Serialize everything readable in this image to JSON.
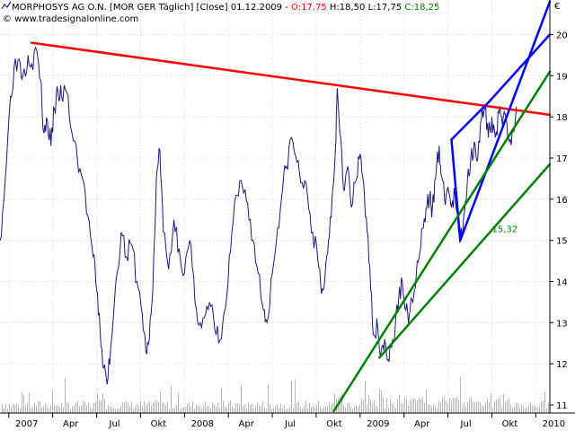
{
  "header": {
    "symbol": "MORPHOSYS AG O.N. [MOR GER",
    "interval": "Täglich] [Close] 01.12.2009 -",
    "open": "O:17,75",
    "high": "H:18,50",
    "low": "L:17,75",
    "close": "C:18,25",
    "copyright": "© www.tradesignalonline.com",
    "currency": "€"
  },
  "colors": {
    "price": "#1a1a80",
    "resistance": "#ff0000",
    "channel": "#0000ff",
    "support": "#008000",
    "volume": "#b8b8b8",
    "open": "#ff0000",
    "close": "#008000"
  },
  "chart_data": {
    "type": "line",
    "title": "MORPHOSYS AG O.N. [MOR GER Täglich] [Close] 01.12.2009",
    "x_tick_labels": [
      "2007",
      "Apr",
      "Jul",
      "Okt",
      "2008",
      "Apr",
      "Jul",
      "Okt",
      "2009",
      "Apr",
      "Jul",
      "Okt",
      "2010"
    ],
    "y_ticks": [
      11,
      12,
      13,
      14,
      15,
      16,
      17,
      18,
      19,
      20
    ],
    "ylim": [
      11,
      20.6
    ],
    "y_axis_position": "right",
    "grid": true,
    "series": [
      {
        "name": "Close",
        "anchors": [
          [
            2006.95,
            15.0
          ],
          [
            2006.98,
            16.5
          ],
          [
            2007.01,
            18.5
          ],
          [
            2007.03,
            19.2
          ],
          [
            2007.06,
            19.4
          ],
          [
            2007.08,
            19.0
          ],
          [
            2007.11,
            19.5
          ],
          [
            2007.13,
            19.3
          ],
          [
            2007.16,
            19.6
          ],
          [
            2007.18,
            18.9
          ],
          [
            2007.2,
            17.6
          ],
          [
            2007.22,
            17.9
          ],
          [
            2007.24,
            17.3
          ],
          [
            2007.26,
            18.2
          ],
          [
            2007.28,
            18.6
          ],
          [
            2007.3,
            18.5
          ],
          [
            2007.33,
            18.6
          ],
          [
            2007.36,
            17.6
          ],
          [
            2007.39,
            17.0
          ],
          [
            2007.42,
            16.5
          ],
          [
            2007.45,
            15.6
          ],
          [
            2007.48,
            14.6
          ],
          [
            2007.5,
            13.8
          ],
          [
            2007.52,
            12.8
          ],
          [
            2007.54,
            11.9
          ],
          [
            2007.56,
            11.5
          ],
          [
            2007.58,
            12.4
          ],
          [
            2007.61,
            14.0
          ],
          [
            2007.64,
            15.2
          ],
          [
            2007.67,
            14.6
          ],
          [
            2007.7,
            14.9
          ],
          [
            2007.73,
            14.0
          ],
          [
            2007.76,
            13.2
          ],
          [
            2007.78,
            12.3
          ],
          [
            2007.8,
            12.6
          ],
          [
            2007.82,
            13.8
          ],
          [
            2007.84,
            16.5
          ],
          [
            2007.86,
            17.2
          ],
          [
            2007.88,
            15.2
          ],
          [
            2007.91,
            14.3
          ],
          [
            2007.94,
            15.5
          ],
          [
            2007.97,
            14.8
          ],
          [
            2008.0,
            14.2
          ],
          [
            2008.03,
            15.0
          ],
          [
            2008.06,
            13.5
          ],
          [
            2008.09,
            13.0
          ],
          [
            2008.12,
            13.2
          ],
          [
            2008.15,
            13.4
          ],
          [
            2008.18,
            12.7
          ],
          [
            2008.21,
            12.6
          ],
          [
            2008.24,
            13.6
          ],
          [
            2008.27,
            15.2
          ],
          [
            2008.3,
            16.1
          ],
          [
            2008.33,
            16.3
          ],
          [
            2008.36,
            15.9
          ],
          [
            2008.39,
            15.0
          ],
          [
            2008.42,
            14.2
          ],
          [
            2008.45,
            13.3
          ],
          [
            2008.47,
            13.0
          ],
          [
            2008.5,
            14.2
          ],
          [
            2008.53,
            15.3
          ],
          [
            2008.56,
            16.3
          ],
          [
            2008.58,
            16.8
          ],
          [
            2008.61,
            17.5
          ],
          [
            2008.64,
            16.9
          ],
          [
            2008.67,
            16.4
          ],
          [
            2008.7,
            16.1
          ],
          [
            2008.73,
            15.2
          ],
          [
            2008.76,
            14.5
          ],
          [
            2008.78,
            13.7
          ],
          [
            2008.8,
            14.1
          ],
          [
            2008.82,
            15.0
          ],
          [
            2008.84,
            16.0
          ],
          [
            2008.86,
            17.3
          ],
          [
            2008.87,
            18.7
          ],
          [
            2008.89,
            17.5
          ],
          [
            2008.91,
            16.2
          ],
          [
            2008.93,
            16.8
          ],
          [
            2008.95,
            15.8
          ],
          [
            2008.98,
            16.5
          ],
          [
            2009.0,
            17.1
          ],
          [
            2009.02,
            16.4
          ],
          [
            2009.04,
            15.2
          ],
          [
            2009.06,
            13.8
          ],
          [
            2009.08,
            12.7
          ],
          [
            2009.1,
            12.9
          ],
          [
            2009.12,
            12.3
          ],
          [
            2009.14,
            12.6
          ],
          [
            2009.16,
            12.1
          ],
          [
            2009.18,
            12.4
          ],
          [
            2009.2,
            12.9
          ],
          [
            2009.22,
            13.6
          ],
          [
            2009.24,
            14.0
          ],
          [
            2009.26,
            13.3
          ],
          [
            2009.28,
            13.2
          ],
          [
            2009.3,
            13.5
          ],
          [
            2009.32,
            14.2
          ],
          [
            2009.34,
            14.7
          ],
          [
            2009.36,
            15.3
          ],
          [
            2009.38,
            15.8
          ],
          [
            2009.4,
            16.2
          ],
          [
            2009.41,
            15.7
          ],
          [
            2009.43,
            16.5
          ],
          [
            2009.45,
            17.3
          ],
          [
            2009.46,
            16.6
          ],
          [
            2009.48,
            16.0
          ],
          [
            2009.5,
            16.3
          ],
          [
            2009.52,
            15.8
          ],
          [
            2009.54,
            16.1
          ],
          [
            2009.56,
            15.2
          ],
          [
            2009.57,
            15.0
          ],
          [
            2009.59,
            15.6
          ],
          [
            2009.61,
            16.4
          ],
          [
            2009.63,
            17.0
          ],
          [
            2009.65,
            17.4
          ],
          [
            2009.67,
            17.0
          ],
          [
            2009.69,
            17.9
          ],
          [
            2009.71,
            18.2
          ],
          [
            2009.73,
            17.5
          ],
          [
            2009.75,
            18.0
          ],
          [
            2009.77,
            17.5
          ],
          [
            2009.79,
            18.1
          ],
          [
            2009.81,
            17.8
          ],
          [
            2009.83,
            18.0
          ],
          [
            2009.85,
            17.4
          ],
          [
            2009.87,
            17.7
          ],
          [
            2009.89,
            18.25
          ]
        ]
      }
    ],
    "trendlines": [
      {
        "type": "resistance",
        "from": [
          2007.13,
          19.8
        ],
        "to": [
          2010.08,
          18.05
        ]
      },
      {
        "type": "channel",
        "from": [
          2009.57,
          15.0
        ],
        "to": [
          2010.08,
          20.8
        ]
      },
      {
        "type": "channel",
        "from": [
          2009.57,
          15.0
        ],
        "to": [
          2009.52,
          17.45
        ]
      },
      {
        "type": "channel",
        "from": [
          2009.52,
          17.45
        ],
        "to": [
          2009.73,
          18.35
        ]
      },
      {
        "type": "channel",
        "from": [
          2009.73,
          18.35
        ],
        "to": [
          2010.08,
          20.0
        ]
      },
      {
        "type": "support",
        "from": [
          2008.85,
          10.85
        ],
        "to": [
          2010.08,
          19.1
        ]
      },
      {
        "type": "support",
        "from": [
          2009.11,
          12.15
        ],
        "to": [
          2010.08,
          16.85
        ]
      }
    ],
    "annotations": [
      {
        "text": "15,32",
        "x": 2009.75,
        "y": 15.2
      }
    ],
    "volume_note": "gray volume bars along the bottom, heavier spikes in Jul 2007, Okt 2007 and Nov 2008–Okt 2009"
  }
}
